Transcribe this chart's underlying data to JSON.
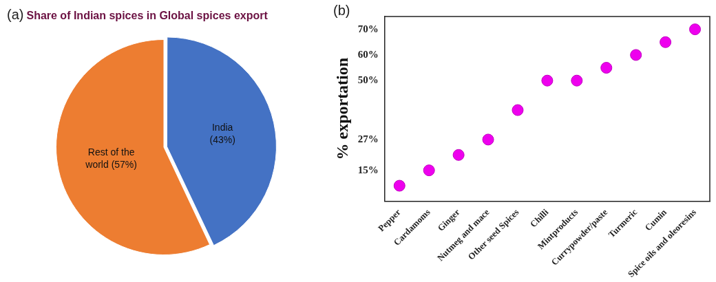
{
  "chart_data": [
    {
      "type": "pie",
      "title": "Share of Indian spices in Global spices export",
      "annotations": [
        "(a)"
      ],
      "categories": [
        "India",
        "Rest of the world"
      ],
      "values": [
        43,
        57
      ],
      "colors": [
        "#4472c4",
        "#ed7d31"
      ],
      "value_labels": [
        "(43%)",
        "(57%)"
      ],
      "legend": false
    },
    {
      "type": "scatter",
      "annotations": [
        "(b)"
      ],
      "ylabel": "% exportation",
      "categories": [
        "Pepper",
        "Cardamoms",
        "Ginger",
        "Nutmeg and mace",
        "Other seed Spices",
        "Chilli",
        "Mintproducts",
        "Currypowder/paste",
        "Turmeric",
        "Cumin",
        "Spice oils and oleoresins"
      ],
      "values": [
        9,
        15,
        21,
        27,
        38.5,
        50,
        50,
        55,
        60,
        65,
        70
      ],
      "color": "#ee00ee",
      "marker": "circle",
      "ylim": [
        3,
        75
      ],
      "yticks": [
        {
          "value": 15,
          "label": "15%"
        },
        {
          "value": 27,
          "label": "27%"
        },
        {
          "value": 50,
          "label": "50%"
        },
        {
          "value": 60,
          "label": "60%"
        },
        {
          "value": 70,
          "label": "70%"
        }
      ],
      "legend": false
    }
  ]
}
